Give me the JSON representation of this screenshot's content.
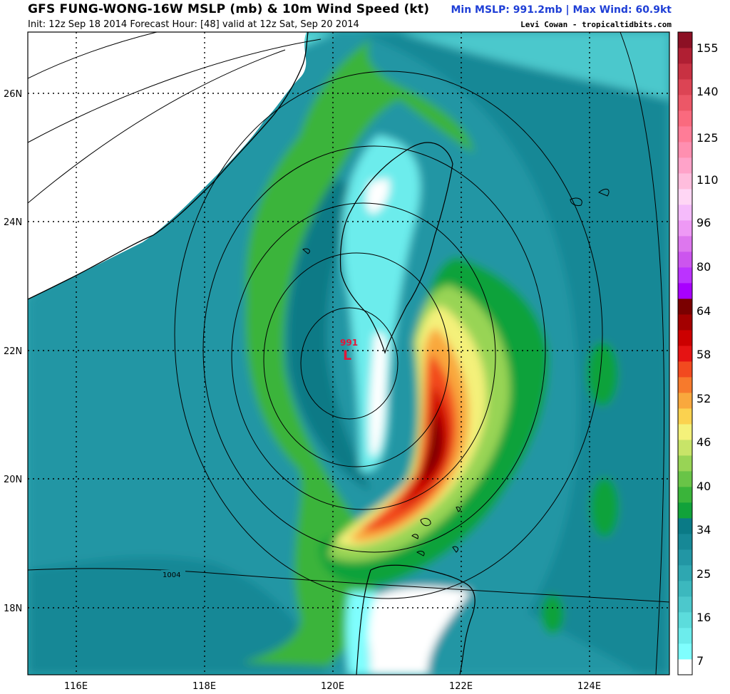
{
  "header": {
    "title": "GFS FUNG-WONG-16W MSLP (mb) & 10m Wind Speed (kt)",
    "subtitle": "Init: 12z Sep 18 2014 Forecast Hour: [48] valid at 12z Sat, Sep 20 2014",
    "stats": "Min MSLP: 991.2mb | Max Wind: 60.9kt",
    "credit": "Levi Cowan - tropicaltidbits.com"
  },
  "map": {
    "lon_labels": [
      "116E",
      "118E",
      "120E",
      "122E",
      "124E"
    ],
    "lat_labels": [
      "26N",
      "24N",
      "22N",
      "20N",
      "18N"
    ],
    "low_center": {
      "value": "991",
      "symbol": "L"
    },
    "isobar_label": "1004"
  },
  "colorbar": {
    "labels": [
      "155",
      "140",
      "125",
      "110",
      "96",
      "80",
      "64",
      "58",
      "52",
      "46",
      "40",
      "34",
      "25",
      "16",
      "7"
    ],
    "colors": [
      "#ffffff",
      "#7ffefe",
      "#6cecec",
      "#5cdcdc",
      "#4cc8cc",
      "#3cb8be",
      "#2ea7b1",
      "#2296a4",
      "#168896",
      "#0a7a86",
      "#11a23a",
      "#3ab43a",
      "#69c447",
      "#98d455",
      "#c8e468",
      "#f4f17a",
      "#fbd24f",
      "#f9a83d",
      "#f77a2c",
      "#f24a1f",
      "#e51313",
      "#cc0000",
      "#a30000",
      "#7a0000",
      "#a800ff",
      "#bb33ff",
      "#cc55ee",
      "#dd77ee",
      "#ee99f5",
      "#f5bbfb",
      "#ffd6f5",
      "#ffbddd",
      "#ffa3c9",
      "#ff8fb0",
      "#ff7c97",
      "#fa6a7e",
      "#ec5767",
      "#dc4454",
      "#c83142",
      "#b01f33",
      "#8c1024"
    ]
  }
}
